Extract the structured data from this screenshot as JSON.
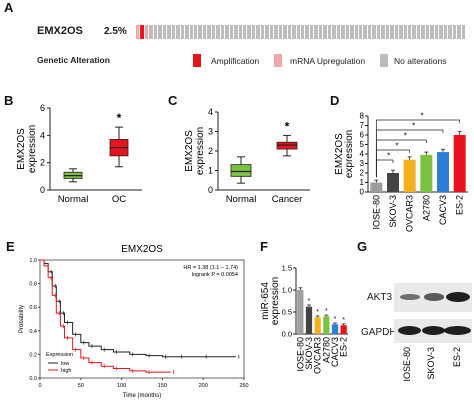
{
  "panel_labels": {
    "A": "A",
    "B": "B",
    "C": "C",
    "D": "D",
    "E": "E",
    "F": "F",
    "G": "G"
  },
  "panelA": {
    "gene": "EMX2OS",
    "percent": "2.5%",
    "track_label": "Genetic Alteration",
    "legend": [
      {
        "label": "Amplification",
        "color": "#e8141d"
      },
      {
        "label": "mRNA Upregulation",
        "color": "#f2a7a9"
      },
      {
        "label": "No alterations",
        "color": "#bdbdbd"
      }
    ]
  },
  "chart_data": [
    {
      "panel": "B",
      "type": "box",
      "ylabel": "EMX2OS expression",
      "categories": [
        "Normal",
        "OC"
      ],
      "colors": [
        "#7cc242",
        "#e8141d"
      ],
      "boxes": [
        {
          "min": 0.6,
          "q1": 0.85,
          "median": 1.05,
          "q3": 1.3,
          "max": 1.55
        },
        {
          "min": 1.7,
          "q1": 2.5,
          "median": 3.1,
          "q3": 3.7,
          "max": 4.6
        }
      ],
      "ylim": [
        0,
        6
      ],
      "yticks": [
        "0",
        "2",
        "4",
        "6"
      ],
      "significance": "*"
    },
    {
      "panel": "C",
      "type": "box",
      "ylabel": "EMX2OS expression",
      "categories": [
        "Normal",
        "Cancer"
      ],
      "colors": [
        "#7cc242",
        "#e8141d"
      ],
      "boxes": [
        {
          "min": 0.35,
          "q1": 0.7,
          "median": 0.95,
          "q3": 1.3,
          "max": 1.7
        },
        {
          "min": 1.75,
          "q1": 2.1,
          "median": 2.3,
          "q3": 2.45,
          "max": 2.8
        }
      ],
      "ylim": [
        0,
        4
      ],
      "yticks": [
        "0",
        "1",
        "2",
        "3",
        "4"
      ],
      "significance": "*"
    },
    {
      "panel": "D",
      "type": "bar",
      "ylabel": "EMX2OS expression",
      "categories": [
        "IOSE-80",
        "SKOV-3",
        "OVCAR3",
        "A2780",
        "CACV3",
        "ES-2"
      ],
      "values": [
        1.0,
        2.0,
        3.4,
        3.9,
        4.2,
        6.0
      ],
      "errors": [
        0.25,
        0.3,
        0.3,
        0.3,
        0.3,
        0.35
      ],
      "colors": [
        "#9e9e9e",
        "#444444",
        "#f2b01e",
        "#7cc242",
        "#2c7fd6",
        "#e8141d"
      ],
      "ylim": [
        0,
        8
      ],
      "yticks": [
        "0",
        "1",
        "2",
        "3",
        "4",
        "5",
        "6",
        "7",
        "8"
      ],
      "significance": [
        "*",
        "*",
        "*",
        "*",
        "*"
      ]
    },
    {
      "panel": "E",
      "type": "line",
      "title": "EMX2OS",
      "xlabel": "Time (months)",
      "ylabel": "Probability",
      "xticks": [
        "0",
        "50",
        "100",
        "150",
        "200",
        "250"
      ],
      "yticks": [
        "0.0",
        "0.2",
        "0.4",
        "0.6",
        "0.8",
        "1.0"
      ],
      "xlim": [
        0,
        250
      ],
      "ylim": [
        0,
        1
      ],
      "annotation": [
        "HR = 1.38 (1.1 – 1.74)",
        "logrank P = 0.0054"
      ],
      "legend_title": "Expression",
      "series": [
        {
          "name": "low",
          "color": "#222222",
          "x": [
            0,
            5,
            10,
            15,
            20,
            25,
            30,
            40,
            50,
            60,
            75,
            90,
            110,
            130,
            150,
            170,
            200,
            240
          ],
          "y": [
            1.0,
            0.97,
            0.9,
            0.78,
            0.65,
            0.55,
            0.47,
            0.37,
            0.3,
            0.27,
            0.24,
            0.22,
            0.2,
            0.19,
            0.18,
            0.18,
            0.18,
            0.18
          ]
        },
        {
          "name": "high",
          "color": "#e8141d",
          "x": [
            0,
            5,
            10,
            15,
            20,
            25,
            30,
            40,
            50,
            60,
            75,
            90,
            110,
            130,
            160
          ],
          "y": [
            1.0,
            0.95,
            0.85,
            0.7,
            0.55,
            0.44,
            0.34,
            0.24,
            0.17,
            0.13,
            0.1,
            0.08,
            0.06,
            0.05,
            0.05
          ]
        }
      ]
    },
    {
      "panel": "F",
      "type": "bar",
      "ylabel": "miR-654 expression",
      "categories": [
        "IOSE-80",
        "SKOV-3",
        "OVCAR3",
        "A2780",
        "CACV3",
        "ES-2"
      ],
      "values": [
        1.0,
        0.62,
        0.38,
        0.4,
        0.22,
        0.2
      ],
      "errors": [
        0.05,
        0.04,
        0.03,
        0.03,
        0.03,
        0.03
      ],
      "colors": [
        "#9e9e9e",
        "#444444",
        "#f2b01e",
        "#7cc242",
        "#2c7fd6",
        "#e8141d"
      ],
      "ylim": [
        0,
        1.5
      ],
      "yticks": [
        "0.0",
        "0.5",
        "1.0",
        "1.5"
      ],
      "significance": [
        "*",
        "*",
        "*",
        "*",
        "*"
      ]
    }
  ],
  "panelG": {
    "bands": [
      "AKT3",
      "GAPDH"
    ],
    "lanes": [
      "IOSE-80",
      "SKOV-3",
      "ES-2"
    ],
    "akt3_intensity": [
      0.45,
      0.6,
      1.0
    ],
    "gapdh_intensity": [
      0.95,
      0.95,
      0.95
    ]
  }
}
